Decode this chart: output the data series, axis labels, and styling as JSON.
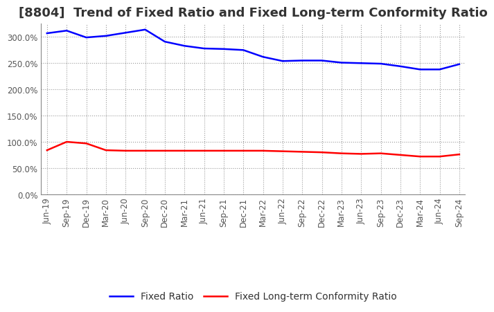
{
  "title": "[8804]  Trend of Fixed Ratio and Fixed Long-term Conformity Ratio",
  "x_labels": [
    "Jun-19",
    "Sep-19",
    "Dec-19",
    "Mar-20",
    "Jun-20",
    "Sep-20",
    "Dec-20",
    "Mar-21",
    "Jun-21",
    "Sep-21",
    "Dec-21",
    "Mar-22",
    "Jun-22",
    "Sep-22",
    "Dec-22",
    "Mar-23",
    "Jun-23",
    "Sep-23",
    "Dec-23",
    "Mar-24",
    "Jun-24",
    "Sep-24"
  ],
  "fixed_ratio": [
    307,
    312,
    299,
    302,
    308,
    314,
    291,
    283,
    278,
    277,
    275,
    262,
    254,
    255,
    255,
    251,
    250,
    249,
    244,
    238,
    238,
    248
  ],
  "fixed_lt_ratio": [
    84,
    100,
    97,
    84,
    83,
    83,
    83,
    83,
    83,
    83,
    83,
    83,
    82,
    81,
    80,
    78,
    77,
    78,
    75,
    72,
    72,
    76
  ],
  "ylim": [
    0,
    325
  ],
  "yticks": [
    0,
    50,
    100,
    150,
    200,
    250,
    300
  ],
  "blue_color": "#0000ff",
  "red_color": "#ff0000",
  "background_color": "#ffffff",
  "grid_color": "#999999",
  "legend_fixed_ratio": "Fixed Ratio",
  "legend_fixed_lt_ratio": "Fixed Long-term Conformity Ratio",
  "title_fontsize": 13,
  "axis_fontsize": 8.5,
  "legend_fontsize": 10
}
